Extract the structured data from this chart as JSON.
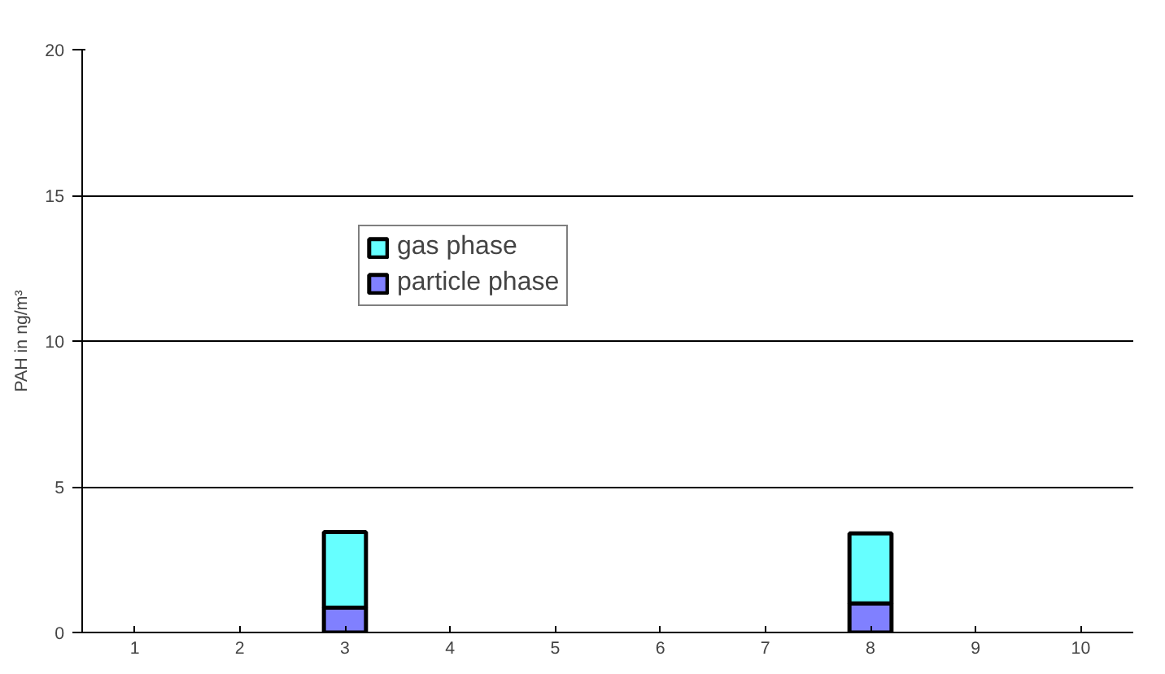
{
  "chart_data": {
    "type": "bar",
    "stacked": true,
    "ylabel": "PAH in ng/m³",
    "categories": [
      "1",
      "2",
      "3",
      "4",
      "5",
      "6",
      "7",
      "8",
      "9",
      "10"
    ],
    "series": [
      {
        "name": "particle phase",
        "color": "#8080ff",
        "values": [
          null,
          null,
          0.85,
          null,
          null,
          null,
          null,
          1.0,
          null,
          null
        ]
      },
      {
        "name": "gas phase",
        "color": "#66ffff",
        "values": [
          null,
          null,
          2.6,
          null,
          null,
          null,
          null,
          2.4,
          null,
          null
        ]
      }
    ],
    "ylim": [
      0,
      20
    ],
    "yticks": [
      0,
      5,
      10,
      15,
      20
    ],
    "grid": "y",
    "legend": "top"
  }
}
